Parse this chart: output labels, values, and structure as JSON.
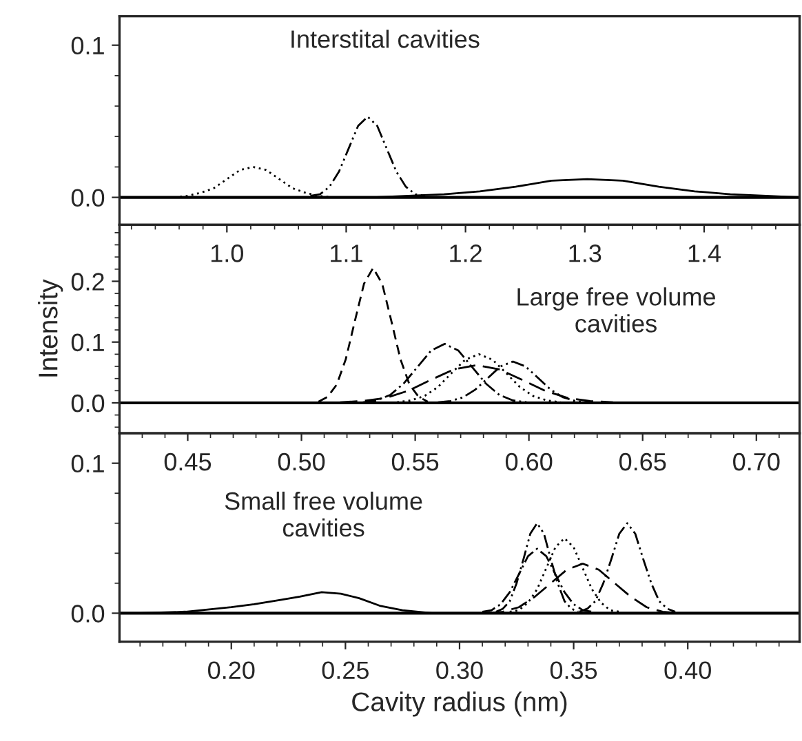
{
  "chart_data": [
    {
      "type": "line",
      "title": "Interstital cavities",
      "xlim": [
        0.91,
        1.48
      ],
      "ylim": [
        -0.018,
        0.119
      ],
      "xticks": [
        {
          "value": 0.92,
          "label": null
        },
        {
          "value": 0.94,
          "label": null
        },
        {
          "value": 0.96,
          "label": null
        },
        {
          "value": 0.98,
          "label": null
        },
        {
          "value": 1.0,
          "label": "1.0"
        },
        {
          "value": 1.02,
          "label": null
        },
        {
          "value": 1.04,
          "label": null
        },
        {
          "value": 1.06,
          "label": null
        },
        {
          "value": 1.08,
          "label": null
        },
        {
          "value": 1.1,
          "label": "1.1"
        },
        {
          "value": 1.12,
          "label": null
        },
        {
          "value": 1.14,
          "label": null
        },
        {
          "value": 1.16,
          "label": null
        },
        {
          "value": 1.18,
          "label": null
        },
        {
          "value": 1.2,
          "label": "1.2"
        },
        {
          "value": 1.22,
          "label": null
        },
        {
          "value": 1.24,
          "label": null
        },
        {
          "value": 1.26,
          "label": null
        },
        {
          "value": 1.28,
          "label": null
        },
        {
          "value": 1.3,
          "label": "1.3"
        },
        {
          "value": 1.32,
          "label": null
        },
        {
          "value": 1.34,
          "label": null
        },
        {
          "value": 1.36,
          "label": null
        },
        {
          "value": 1.38,
          "label": null
        },
        {
          "value": 1.4,
          "label": "1.4"
        },
        {
          "value": 1.42,
          "label": null
        },
        {
          "value": 1.44,
          "label": null
        },
        {
          "value": 1.46,
          "label": null
        }
      ],
      "yticks": [
        {
          "value": 0.0,
          "label": "0.0"
        },
        {
          "value": 0.02,
          "label": null
        },
        {
          "value": 0.04,
          "label": null
        },
        {
          "value": 0.06,
          "label": null
        },
        {
          "value": 0.08,
          "label": null
        },
        {
          "value": 0.1,
          "label": "0.1"
        }
      ],
      "ref_lines": [
        {
          "axis": "y",
          "value": 0,
          "color": "#000000",
          "line_style": "solid"
        }
      ],
      "grid": false,
      "legend": false,
      "series": [
        {
          "color": "#000000",
          "line_style": "dotted",
          "x": [
            0.956,
            0.967,
            0.978,
            0.989,
            1.0,
            1.011,
            1.022,
            1.033,
            1.044,
            1.055,
            1.066,
            1.077,
            1.088
          ],
          "values": [
            0.0,
            0.001,
            0.003,
            0.006,
            0.012,
            0.018,
            0.02,
            0.018,
            0.012,
            0.006,
            0.003,
            0.001,
            0.0
          ]
        },
        {
          "color": "#000000",
          "line_style": "dashdotdot",
          "x": [
            1.07,
            1.078,
            1.086,
            1.094,
            1.102,
            1.11,
            1.118,
            1.126,
            1.134,
            1.142,
            1.15,
            1.158,
            1.166
          ],
          "values": [
            0.001,
            0.002,
            0.007,
            0.017,
            0.032,
            0.047,
            0.053,
            0.047,
            0.032,
            0.017,
            0.007,
            0.002,
            0.001
          ]
        },
        {
          "color": "#000000",
          "line_style": "solid",
          "x": [
            1.122,
            1.152,
            1.182,
            1.212,
            1.242,
            1.272,
            1.302,
            1.332,
            1.362,
            1.392,
            1.422,
            1.452,
            1.48
          ],
          "values": [
            0.0,
            0.001,
            0.002,
            0.004,
            0.007,
            0.011,
            0.012,
            0.011,
            0.007,
            0.004,
            0.002,
            0.001,
            0.0
          ]
        }
      ]
    },
    {
      "type": "line",
      "title": "Large free volume\ncavities",
      "ylabel": "Intensity",
      "xlim": [
        0.42,
        0.719
      ],
      "ylim": [
        -0.05,
        0.293
      ],
      "xticks": [
        {
          "value": 0.43,
          "label": null
        },
        {
          "value": 0.44,
          "label": null
        },
        {
          "value": 0.45,
          "label": "0.45"
        },
        {
          "value": 0.46,
          "label": null
        },
        {
          "value": 0.47,
          "label": null
        },
        {
          "value": 0.48,
          "label": null
        },
        {
          "value": 0.49,
          "label": null
        },
        {
          "value": 0.5,
          "label": "0.50"
        },
        {
          "value": 0.51,
          "label": null
        },
        {
          "value": 0.52,
          "label": null
        },
        {
          "value": 0.53,
          "label": null
        },
        {
          "value": 0.54,
          "label": null
        },
        {
          "value": 0.55,
          "label": "0.55"
        },
        {
          "value": 0.56,
          "label": null
        },
        {
          "value": 0.57,
          "label": null
        },
        {
          "value": 0.58,
          "label": null
        },
        {
          "value": 0.59,
          "label": null
        },
        {
          "value": 0.6,
          "label": "0.60"
        },
        {
          "value": 0.61,
          "label": null
        },
        {
          "value": 0.62,
          "label": null
        },
        {
          "value": 0.63,
          "label": null
        },
        {
          "value": 0.64,
          "label": null
        },
        {
          "value": 0.65,
          "label": "0.65"
        },
        {
          "value": 0.66,
          "label": null
        },
        {
          "value": 0.67,
          "label": null
        },
        {
          "value": 0.68,
          "label": null
        },
        {
          "value": 0.69,
          "label": null
        },
        {
          "value": 0.7,
          "label": "0.70"
        },
        {
          "value": 0.71,
          "label": null
        }
      ],
      "yticks": [
        {
          "value": -0.04,
          "label": null
        },
        {
          "value": -0.02,
          "label": null
        },
        {
          "value": 0.0,
          "label": "0.0"
        },
        {
          "value": 0.02,
          "label": null
        },
        {
          "value": 0.04,
          "label": null
        },
        {
          "value": 0.06,
          "label": null
        },
        {
          "value": 0.08,
          "label": null
        },
        {
          "value": 0.1,
          "label": "0.1"
        },
        {
          "value": 0.12,
          "label": null
        },
        {
          "value": 0.14,
          "label": null
        },
        {
          "value": 0.16,
          "label": null
        },
        {
          "value": 0.18,
          "label": null
        },
        {
          "value": 0.2,
          "label": "0.2"
        },
        {
          "value": 0.22,
          "label": null
        },
        {
          "value": 0.24,
          "label": null
        },
        {
          "value": 0.26,
          "label": null
        },
        {
          "value": 0.28,
          "label": null
        }
      ],
      "ref_lines": [
        {
          "axis": "y",
          "value": 0,
          "color": "#000000",
          "line_style": "solid"
        }
      ],
      "grid": false,
      "legend": false,
      "series": [
        {
          "color": "#000000",
          "line_style": "dashed",
          "x": [
            0.5075,
            0.5115,
            0.5155,
            0.5195,
            0.5235,
            0.5275,
            0.5315,
            0.5355,
            0.5395,
            0.5435,
            0.5475,
            0.5515,
            0.5555
          ],
          "values": [
            0.002,
            0.01,
            0.03,
            0.072,
            0.135,
            0.196,
            0.222,
            0.196,
            0.135,
            0.072,
            0.03,
            0.01,
            0.002
          ]
        },
        {
          "color": "#000000",
          "line_style": "dashdot",
          "x": [
            0.527,
            0.533,
            0.539,
            0.545,
            0.551,
            0.557,
            0.563,
            0.569,
            0.575,
            0.581,
            0.587,
            0.593,
            0.599
          ],
          "values": [
            0.001,
            0.004,
            0.013,
            0.032,
            0.059,
            0.086,
            0.097,
            0.086,
            0.059,
            0.032,
            0.013,
            0.004,
            0.001
          ]
        },
        {
          "color": "#000000",
          "line_style": "dotted",
          "x": [
            0.542,
            0.548,
            0.554,
            0.56,
            0.566,
            0.572,
            0.578,
            0.584,
            0.59,
            0.596,
            0.602,
            0.608,
            0.614
          ],
          "values": [
            0.001,
            0.004,
            0.011,
            0.026,
            0.049,
            0.071,
            0.08,
            0.071,
            0.049,
            0.026,
            0.011,
            0.004,
            0.001
          ]
        },
        {
          "color": "#000000",
          "line_style": "longdash",
          "x": [
            0.517,
            0.527,
            0.537,
            0.547,
            0.557,
            0.567,
            0.577,
            0.587,
            0.597,
            0.607,
            0.617,
            0.627,
            0.637
          ],
          "values": [
            0.001,
            0.003,
            0.008,
            0.02,
            0.038,
            0.055,
            0.062,
            0.055,
            0.038,
            0.02,
            0.008,
            0.003,
            0.001
          ]
        },
        {
          "color": "#000000",
          "line_style": "dashdotdot",
          "x": [
            0.56,
            0.5655,
            0.571,
            0.5765,
            0.582,
            0.5875,
            0.593,
            0.5985,
            0.604,
            0.6095,
            0.615,
            0.6205,
            0.626
          ],
          "values": [
            0.001,
            0.003,
            0.009,
            0.022,
            0.041,
            0.06,
            0.068,
            0.06,
            0.041,
            0.022,
            0.009,
            0.003,
            0.001
          ]
        }
      ]
    },
    {
      "type": "line",
      "title": "Small free volume\ncavities",
      "xlabel": "Cavity radius (nm)",
      "xlim": [
        0.151,
        0.449
      ],
      "ylim": [
        -0.019,
        0.12
      ],
      "xticks": [
        {
          "value": 0.16,
          "label": null
        },
        {
          "value": 0.17,
          "label": null
        },
        {
          "value": 0.18,
          "label": null
        },
        {
          "value": 0.19,
          "label": null
        },
        {
          "value": 0.2,
          "label": "0.20"
        },
        {
          "value": 0.21,
          "label": null
        },
        {
          "value": 0.22,
          "label": null
        },
        {
          "value": 0.23,
          "label": null
        },
        {
          "value": 0.24,
          "label": null
        },
        {
          "value": 0.25,
          "label": "0.25"
        },
        {
          "value": 0.26,
          "label": null
        },
        {
          "value": 0.27,
          "label": null
        },
        {
          "value": 0.28,
          "label": null
        },
        {
          "value": 0.29,
          "label": null
        },
        {
          "value": 0.3,
          "label": "0.30"
        },
        {
          "value": 0.31,
          "label": null
        },
        {
          "value": 0.32,
          "label": null
        },
        {
          "value": 0.33,
          "label": null
        },
        {
          "value": 0.34,
          "label": null
        },
        {
          "value": 0.35,
          "label": "0.35"
        },
        {
          "value": 0.36,
          "label": null
        },
        {
          "value": 0.37,
          "label": null
        },
        {
          "value": 0.38,
          "label": null
        },
        {
          "value": 0.39,
          "label": null
        },
        {
          "value": 0.4,
          "label": "0.40"
        },
        {
          "value": 0.41,
          "label": null
        },
        {
          "value": 0.42,
          "label": null
        },
        {
          "value": 0.43,
          "label": null
        },
        {
          "value": 0.44,
          "label": null
        }
      ],
      "yticks": [
        {
          "value": 0.0,
          "label": "0.0"
        },
        {
          "value": 0.02,
          "label": null
        },
        {
          "value": 0.04,
          "label": null
        },
        {
          "value": 0.06,
          "label": null
        },
        {
          "value": 0.08,
          "label": null
        },
        {
          "value": 0.1,
          "label": "0.1"
        }
      ],
      "ref_lines": [
        {
          "axis": "y",
          "value": 0,
          "color": "#000000",
          "line_style": "solid"
        }
      ],
      "grid": false,
      "legend": false,
      "series": [
        {
          "color": "#000000",
          "line_style": "solid",
          "x": [
            0.16,
            0.18,
            0.2,
            0.21,
            0.222,
            0.23,
            0.2396,
            0.248,
            0.256,
            0.265,
            0.275,
            0.288
          ],
          "values": [
            0.0,
            0.001,
            0.004,
            0.006,
            0.009,
            0.011,
            0.014,
            0.013,
            0.01,
            0.005,
            0.002,
            0.0
          ]
        },
        {
          "color": "#000000",
          "line_style": "dashdotdot",
          "x": [
            0.316,
            0.319,
            0.322,
            0.325,
            0.328,
            0.331,
            0.334,
            0.337,
            0.34,
            0.343,
            0.346,
            0.349,
            0.352
          ],
          "values": [
            0.001,
            0.003,
            0.008,
            0.02,
            0.036,
            0.053,
            0.06,
            0.053,
            0.036,
            0.02,
            0.008,
            0.003,
            0.001
          ]
        },
        {
          "color": "#000000",
          "line_style": "dashdot",
          "x": [
            0.31,
            0.314,
            0.318,
            0.322,
            0.326,
            0.33,
            0.334,
            0.338,
            0.342,
            0.346,
            0.35,
            0.354,
            0.358
          ],
          "values": [
            0.001,
            0.002,
            0.006,
            0.014,
            0.026,
            0.038,
            0.043,
            0.038,
            0.026,
            0.014,
            0.006,
            0.002,
            0.001
          ]
        },
        {
          "color": "#000000",
          "line_style": "dotted",
          "x": [
            0.322,
            0.326,
            0.33,
            0.334,
            0.338,
            0.342,
            0.346,
            0.35,
            0.354,
            0.358,
            0.362,
            0.366,
            0.37
          ],
          "values": [
            0.001,
            0.002,
            0.007,
            0.016,
            0.03,
            0.044,
            0.05,
            0.044,
            0.03,
            0.016,
            0.007,
            0.002,
            0.001
          ]
        },
        {
          "color": "#000000",
          "line_style": "longdash",
          "x": [
            0.312,
            0.319,
            0.326,
            0.333,
            0.34,
            0.347,
            0.354,
            0.361,
            0.368,
            0.375,
            0.382,
            0.389,
            0.396
          ],
          "values": [
            0.0,
            0.001,
            0.004,
            0.011,
            0.02,
            0.029,
            0.033,
            0.029,
            0.02,
            0.011,
            0.004,
            0.001,
            0.0
          ]
        },
        {
          "color": "#000000",
          "line_style": "dashdotdot",
          "x": [
            0.3525,
            0.356,
            0.3595,
            0.363,
            0.3665,
            0.37,
            0.3735,
            0.377,
            0.3805,
            0.384,
            0.3875,
            0.391,
            0.3945
          ],
          "values": [
            0.001,
            0.003,
            0.008,
            0.02,
            0.036,
            0.053,
            0.06,
            0.053,
            0.036,
            0.02,
            0.008,
            0.003,
            0.001
          ]
        }
      ]
    }
  ]
}
